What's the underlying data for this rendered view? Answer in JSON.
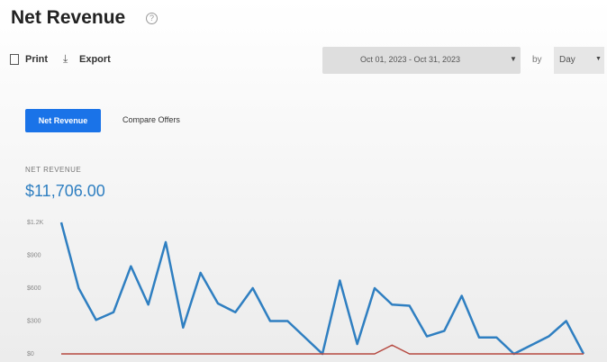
{
  "header": {
    "title": "Net Revenue"
  },
  "toolbar": {
    "print": "Print",
    "export": "Export",
    "date_range": "Oct 01, 2023 - Oct 31, 2023",
    "by": "by",
    "granularity": "Day"
  },
  "tabs": {
    "active": "Net Revenue",
    "other": "Compare Offers"
  },
  "metric": {
    "label": "NET REVENUE",
    "value": "$11,706.00"
  },
  "chart_data": {
    "type": "line",
    "ylim": [
      0,
      1200
    ],
    "yticks": [
      {
        "value": 0,
        "label": "$0"
      },
      {
        "value": 300,
        "label": "$300"
      },
      {
        "value": 600,
        "label": "$600"
      },
      {
        "value": 900,
        "label": "$900"
      },
      {
        "value": 1200,
        "label": "$1.2K"
      }
    ],
    "grid": false,
    "series": [
      {
        "color": "#2f7fc1",
        "values": [
          1200,
          600,
          310,
          380,
          800,
          450,
          1020,
          240,
          740,
          460,
          380,
          600,
          300,
          300,
          150,
          0,
          670,
          90,
          600,
          450,
          440,
          160,
          210,
          530,
          150,
          150,
          0,
          80,
          160,
          300,
          0
        ]
      },
      {
        "color": "#b5483f",
        "values": [
          0,
          0,
          0,
          0,
          0,
          0,
          0,
          0,
          0,
          0,
          0,
          0,
          0,
          0,
          0,
          0,
          0,
          0,
          0,
          80,
          0,
          0,
          0,
          0,
          0,
          0,
          0,
          0,
          0,
          0,
          0
        ]
      }
    ]
  }
}
